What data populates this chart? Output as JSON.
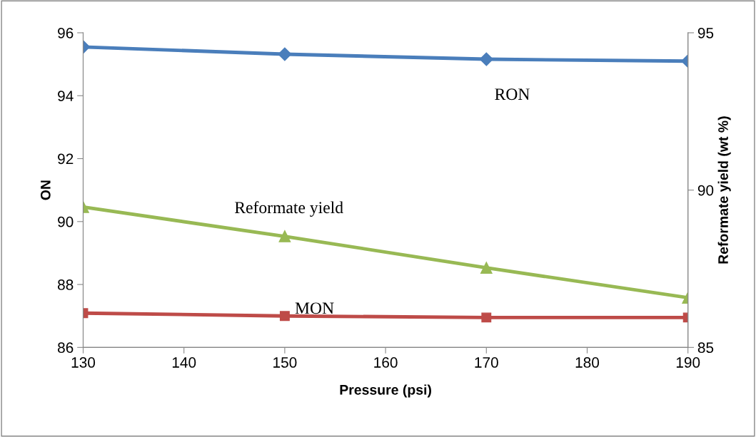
{
  "chart_data": {
    "type": "line",
    "xlabel": "Pressure (psi)",
    "ylabel": "ON",
    "y2label": "Reformate yield (wt %)",
    "x": [
      130,
      150,
      170,
      190
    ],
    "series": [
      {
        "name": "RON",
        "color": "#4a7ebb",
        "values": [
          95.55,
          95.32,
          95.16,
          95.1
        ],
        "marker": "diamond"
      },
      {
        "name": "MON",
        "color": "#be4b48",
        "values": [
          87.09,
          87.0,
          86.95,
          86.95
        ],
        "marker": "square"
      },
      {
        "name": "Reformate yield",
        "color": "#98b954",
        "values": [
          89.46,
          88.53,
          87.53,
          86.58
        ],
        "marker": "triangle",
        "axis": "y2"
      }
    ],
    "xlim": [
      130,
      190
    ],
    "xticks": [
      130,
      140,
      150,
      160,
      170,
      180,
      190
    ],
    "ylim": [
      86,
      96
    ],
    "yticks": [
      86,
      88,
      90,
      92,
      94,
      96
    ],
    "y2lim": [
      85,
      95
    ],
    "y2ticks": [
      85,
      90,
      95
    ],
    "grid": false,
    "legend": false,
    "line_style": "solid"
  }
}
